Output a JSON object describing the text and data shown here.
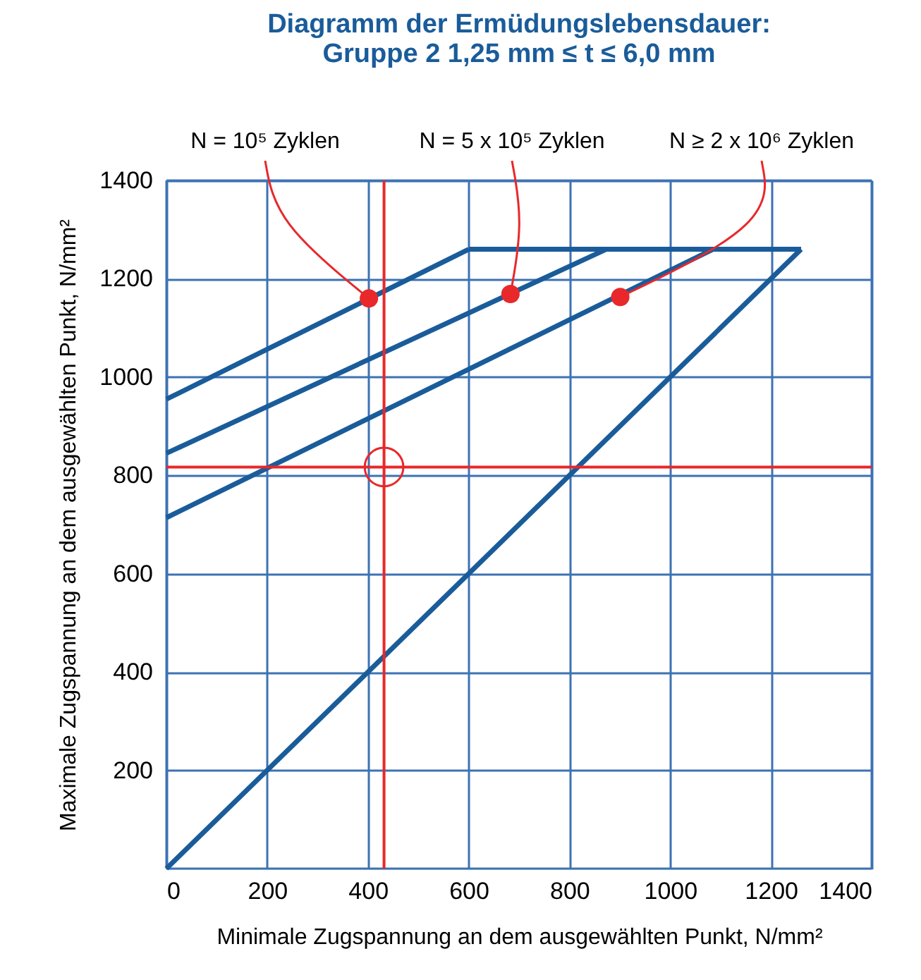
{
  "chart_data": {
    "type": "line",
    "title": [
      "Diagramm der Ermüdungslebensdauer:",
      "Gruppe 2  1,25 mm ≤ t ≤ 6,0 mm"
    ],
    "xlabel": "Minimale Zugspannung an dem ausgewählten Punkt, N/mm²",
    "ylabel": "Maximale Zugspannung an dem ausgewählten Punkt, N/mm²",
    "xlim": [
      0,
      1400
    ],
    "ylim": [
      0,
      1400
    ],
    "xticks": [
      0,
      200,
      400,
      600,
      800,
      1000,
      1200,
      1400
    ],
    "yticks": [
      200,
      400,
      600,
      800,
      1000,
      1200,
      1400
    ],
    "grid": true,
    "series": [
      {
        "color": "#1a5c9a",
        "x": [
          0,
          1260
        ],
        "values": [
          0,
          1260
        ]
      },
      {
        "color": "#1a5c9a",
        "x": [
          600,
          1260
        ],
        "values": [
          1260,
          1260
        ]
      },
      {
        "color": "#1a5c9a",
        "x": [
          0,
          600
        ],
        "values": [
          955,
          1260
        ]
      },
      {
        "color": "#1a5c9a",
        "x": [
          0,
          873
        ],
        "values": [
          845,
          1260
        ]
      },
      {
        "color": "#1a5c9a",
        "x": [
          0,
          1085
        ],
        "values": [
          714,
          1260
        ]
      },
      {
        "type": "bubble",
        "color": "#e8282a",
        "x": [
          432
        ],
        "values": [
          817
        ],
        "sizes": [
          1
        ]
      },
      {
        "type": "scatter",
        "color": "#e8282a",
        "marker": "circle",
        "x": [
          402,
          683,
          901
        ],
        "values": [
          1160,
          1169,
          1163
        ]
      }
    ],
    "ref_lines": [
      {
        "axis": "x",
        "value": 432,
        "color": "#e8282a"
      },
      {
        "axis": "y",
        "value": 817,
        "color": "#e8282a"
      }
    ],
    "annotations": [
      {
        "text": "N = 10⁵ Zyklen",
        "x": 402,
        "y": 1160
      },
      {
        "text": "N = 5 x 10⁵ Zyklen",
        "x": 683,
        "y": 1169
      },
      {
        "text": "N ≥ 2 x 10⁶ Zyklen",
        "x": 901,
        "y": 1163
      }
    ]
  }
}
